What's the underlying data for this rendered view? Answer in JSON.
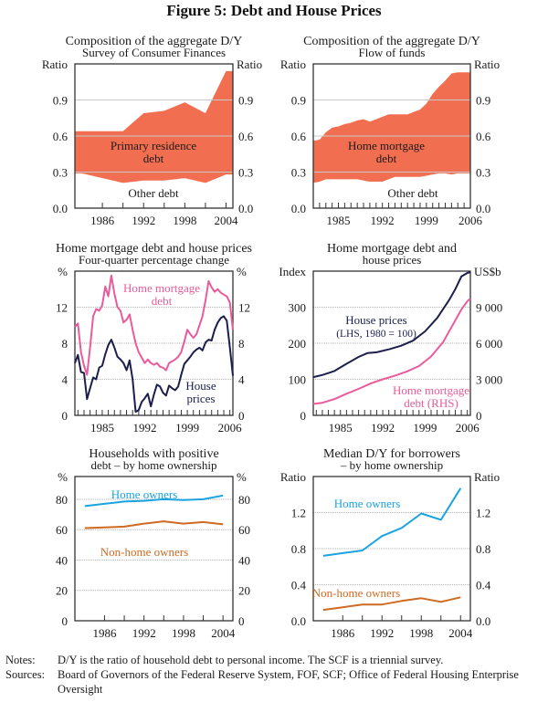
{
  "figure": {
    "title": "Figure 5: Debt and House Prices",
    "notes_label": "Notes:",
    "notes_text": "D/Y is the ratio of household debt to personal income. The SCF is a triennial survey.",
    "sources_label": "Sources:",
    "sources_text": "Board of Governors of the Federal Reserve System, FOF, SCF; Office of Federal Housing Enterprise Oversight"
  },
  "colors": {
    "area": "#f26e50",
    "navy": "#1c1f4d",
    "pink": "#ea5b9a",
    "blue": "#1aa3e0",
    "orange": "#cf6a22",
    "grid": "#b4b4b4"
  },
  "chart_data": [
    {
      "id": "scf",
      "type": "area",
      "title": "Composition of the aggregate D/Y",
      "subtitle": "Survey of Consumer Finances",
      "ylabel_left": "Ratio",
      "ylabel_right": "Ratio",
      "ylim": [
        0,
        1.2
      ],
      "yticks": [
        0.0,
        0.3,
        0.6,
        0.9
      ],
      "ytick_labels": [
        "0.0",
        "0.3",
        "0.6",
        "0.9"
      ],
      "xlim": [
        1982,
        2005
      ],
      "xticks": [
        1986,
        1992,
        1998,
        2004
      ],
      "xtick_labels": [
        "1986",
        "1992",
        "1998",
        "2004"
      ],
      "minor_xticks": [
        1986,
        1989,
        1992,
        1995,
        1998,
        2001,
        2004
      ],
      "x": [
        1983,
        1986,
        1989,
        1992,
        1995,
        1998,
        2001,
        2004
      ],
      "series": [
        {
          "name": "Other debt",
          "values": [
            0.29,
            0.25,
            0.21,
            0.23,
            0.23,
            0.25,
            0.21,
            0.28
          ]
        },
        {
          "name": "Primary residence debt (total)",
          "values": [
            0.64,
            0.64,
            0.64,
            0.79,
            0.81,
            0.88,
            0.79,
            1.14
          ]
        }
      ],
      "annotations": [
        {
          "text": "Primary residence",
          "line2": "debt"
        },
        {
          "text": "Other debt"
        }
      ]
    },
    {
      "id": "fof",
      "type": "area",
      "title": "Composition of the aggregate D/Y",
      "subtitle": "Flow of funds",
      "ylabel_left": "Ratio",
      "ylabel_right": "Ratio",
      "ylim": [
        0,
        1.2
      ],
      "yticks": [
        0.0,
        0.3,
        0.6,
        0.9
      ],
      "ytick_labels": [
        "0.0",
        "0.3",
        "0.6",
        "0.9"
      ],
      "xlim": [
        1981,
        2006
      ],
      "xticks": [
        1985,
        1992,
        1999,
        2006
      ],
      "xtick_labels": [
        "1985",
        "1992",
        "1999",
        "2006"
      ],
      "x": [
        1981,
        1982,
        1983,
        1984,
        1985,
        1986,
        1987,
        1988,
        1989,
        1990,
        1991,
        1992,
        1993,
        1994,
        1995,
        1996,
        1997,
        1998,
        1999,
        2000,
        2001,
        2002,
        2003,
        2004,
        2005,
        2006
      ],
      "series": [
        {
          "name": "Other debt",
          "values": [
            0.21,
            0.22,
            0.24,
            0.24,
            0.24,
            0.24,
            0.24,
            0.24,
            0.23,
            0.22,
            0.22,
            0.22,
            0.24,
            0.26,
            0.26,
            0.26,
            0.26,
            0.26,
            0.27,
            0.28,
            0.29,
            0.29,
            0.28,
            0.29,
            0.29,
            0.29
          ]
        },
        {
          "name": "Home mortgage debt (total)",
          "values": [
            0.56,
            0.57,
            0.63,
            0.67,
            0.68,
            0.7,
            0.71,
            0.73,
            0.74,
            0.72,
            0.74,
            0.76,
            0.78,
            0.78,
            0.78,
            0.78,
            0.8,
            0.82,
            0.87,
            0.95,
            1.01,
            1.06,
            1.12,
            1.13,
            1.13,
            1.13
          ]
        }
      ],
      "annotations": [
        {
          "text": "Home mortgage",
          "line2": "debt"
        },
        {
          "text": "Other debt"
        }
      ]
    },
    {
      "id": "growth",
      "type": "line",
      "title": "Home mortgage debt and house prices",
      "subtitle": "Four-quarter percentage change",
      "ylabel_left": "%",
      "ylabel_right": "%",
      "ylim": [
        0,
        16
      ],
      "yticks": [
        0,
        4,
        8,
        12
      ],
      "ytick_labels": [
        "0",
        "4",
        "8",
        "12"
      ],
      "xlim": [
        1980.5,
        2006.5
      ],
      "xticks": [
        1985,
        1992,
        1999,
        2006
      ],
      "xtick_labels": [
        "1985",
        "1992",
        "1999",
        "2006"
      ],
      "series": [
        {
          "name": "Home mortgage debt",
          "color_key": "pink",
          "x": [
            1980.5,
            1981,
            1981.5,
            1982,
            1982.5,
            1983,
            1983.5,
            1984,
            1984.5,
            1985,
            1985.5,
            1986,
            1986.5,
            1987,
            1987.5,
            1988,
            1988.5,
            1989,
            1989.5,
            1990,
            1990.5,
            1991,
            1991.5,
            1992,
            1992.5,
            1993,
            1993.5,
            1994,
            1994.5,
            1995,
            1995.5,
            1996,
            1996.5,
            1997,
            1997.5,
            1998,
            1998.5,
            1999,
            1999.5,
            2000,
            2000.5,
            2001,
            2001.5,
            2002,
            2002.5,
            2003,
            2003.5,
            2004,
            2004.5,
            2005,
            2005.5,
            2006,
            2006.5
          ],
          "values": [
            9.8,
            10.2,
            7.0,
            5.5,
            4.5,
            7.5,
            11.0,
            11.8,
            11.6,
            12.2,
            14.3,
            13.2,
            15.5,
            13.5,
            12.0,
            11.6,
            10.3,
            10.6,
            11.2,
            9.5,
            8.0,
            7.0,
            6.4,
            5.8,
            6.2,
            5.8,
            5.6,
            5.8,
            5.4,
            5.3,
            5.0,
            5.8,
            6.0,
            6.2,
            6.5,
            7.0,
            8.2,
            9.5,
            9.0,
            8.6,
            9.0,
            10.0,
            11.0,
            12.8,
            14.9,
            14.2,
            13.7,
            14.0,
            13.6,
            13.4,
            13.2,
            12.5,
            9.5
          ]
        },
        {
          "name": "House prices",
          "color_key": "navy",
          "x": [
            1980.5,
            1981,
            1981.5,
            1982,
            1982.5,
            1983,
            1983.5,
            1984,
            1984.5,
            1985,
            1985.5,
            1986,
            1986.5,
            1987,
            1987.5,
            1988,
            1988.5,
            1989,
            1989.5,
            1990,
            1990.5,
            1991,
            1991.5,
            1992,
            1992.5,
            1993,
            1993.5,
            1994,
            1994.5,
            1995,
            1995.5,
            1996,
            1996.5,
            1997,
            1997.5,
            1998,
            1998.5,
            1999,
            1999.5,
            2000,
            2000.5,
            2001,
            2001.5,
            2002,
            2002.5,
            2003,
            2003.5,
            2004,
            2004.5,
            2005,
            2005.5,
            2006,
            2006.5
          ],
          "values": [
            5.8,
            6.7,
            4.8,
            4.7,
            1.8,
            3.0,
            4.2,
            4.0,
            5.3,
            5.5,
            6.8,
            7.8,
            8.4,
            7.5,
            6.5,
            6.2,
            5.8,
            5.0,
            6.1,
            4.0,
            0.4,
            0.6,
            1.5,
            1.9,
            2.4,
            1.0,
            2.3,
            3.4,
            3.2,
            2.5,
            2.2,
            3.3,
            3.0,
            2.8,
            3.2,
            4.5,
            5.7,
            6.1,
            6.5,
            7.0,
            7.3,
            7.5,
            7.2,
            8.1,
            8.4,
            8.3,
            9.5,
            10.3,
            10.8,
            11.0,
            10.5,
            7.5,
            4.4
          ]
        }
      ],
      "annotations": [
        {
          "text": "Home mortgage",
          "line2": "debt"
        },
        {
          "text": "House",
          "line2": "prices"
        }
      ]
    },
    {
      "id": "levels",
      "type": "line",
      "title": "Home mortgage debt and",
      "subtitle": "house prices",
      "ylabel_left": "Index",
      "ylabel_right": "US$b",
      "ylim": [
        0,
        400
      ],
      "yticks": [
        0,
        100,
        200,
        300
      ],
      "ytick_labels": [
        "0",
        "100",
        "200",
        "300"
      ],
      "ylim_right": [
        0,
        12000
      ],
      "yticks_right": [
        0,
        3000,
        6000,
        9000
      ],
      "ytick_labels_right": [
        "0",
        "3 000",
        "6 000",
        "9 000"
      ],
      "xlim": [
        1980.5,
        2006.5
      ],
      "xticks": [
        1985,
        1992,
        1999,
        2006
      ],
      "xtick_labels": [
        "1985",
        "1992",
        "1999",
        "2006"
      ],
      "series": [
        {
          "name": "House prices (LHS, 1980 = 100)",
          "axis": "left",
          "color_key": "navy",
          "x": [
            1980.5,
            1982,
            1984,
            1986,
            1988,
            1989.5,
            1991,
            1993,
            1995,
            1997,
            1999,
            2001,
            2003,
            2004,
            2005,
            2006,
            2006.5
          ],
          "values": [
            106,
            112,
            123,
            143,
            162,
            173,
            175,
            183,
            193,
            207,
            233,
            270,
            320,
            350,
            385,
            395,
            397
          ]
        },
        {
          "name": "Home mortgage debt (RHS)",
          "axis": "right",
          "color_key": "pink",
          "x": [
            1980.5,
            1982,
            1984,
            1986,
            1988,
            1990,
            1992,
            1994,
            1996,
            1998,
            2000,
            2002,
            2003,
            2004,
            2005,
            2006,
            2006.5
          ],
          "values": [
            950,
            1050,
            1350,
            1800,
            2200,
            2650,
            3000,
            3300,
            3650,
            4100,
            4900,
            6100,
            7000,
            7900,
            8800,
            9500,
            9700
          ]
        }
      ],
      "annotations": [
        {
          "text": "House prices",
          "line2": "(LHS, 1980 = 100)"
        },
        {
          "text": "Home mortgage",
          "line2": "debt (RHS)"
        }
      ]
    },
    {
      "id": "positive_debt",
      "type": "line",
      "title": "Households with positive",
      "subtitle": "debt – by home ownership",
      "ylabel_left": "%",
      "ylabel_right": "%",
      "ylim": [
        0,
        95
      ],
      "yticks": [
        0,
        20,
        40,
        60,
        80
      ],
      "ytick_labels": [
        "0",
        "20",
        "40",
        "60",
        "80"
      ],
      "xlim": [
        1981.5,
        2005.5
      ],
      "xticks": [
        1986,
        1992,
        1998,
        2004
      ],
      "xtick_labels": [
        "1986",
        "1992",
        "1998",
        "2004"
      ],
      "minor_xticks": [
        1986,
        1989,
        1992,
        1995,
        1998,
        2001,
        2004
      ],
      "series": [
        {
          "name": "Home owners",
          "color_key": "blue",
          "x": [
            1983,
            1986,
            1989,
            1992,
            1995,
            1998,
            2001,
            2004
          ],
          "values": [
            75.5,
            77,
            78.5,
            79,
            80,
            79.5,
            80,
            82.5
          ]
        },
        {
          "name": "Non-home owners",
          "color_key": "orange",
          "x": [
            1983,
            1986,
            1989,
            1992,
            1995,
            1998,
            2001,
            2004
          ],
          "values": [
            61,
            61.5,
            62,
            64,
            65.5,
            64,
            65,
            63.5
          ]
        }
      ],
      "annotations": [
        {
          "text": "Home owners"
        },
        {
          "text": "Non-home owners"
        }
      ]
    },
    {
      "id": "median_dy",
      "type": "line",
      "title": "Median D/Y for borrowers",
      "subtitle": "– by home ownership",
      "ylabel_left": "Ratio",
      "ylabel_right": "Ratio",
      "ylim": [
        0,
        1.6
      ],
      "yticks": [
        0.0,
        0.4,
        0.8,
        1.2
      ],
      "ytick_labels": [
        "0.0",
        "0.4",
        "0.8",
        "1.2"
      ],
      "xlim": [
        1981.5,
        2005.5
      ],
      "xticks": [
        1986,
        1992,
        1998,
        2004
      ],
      "xtick_labels": [
        "1986",
        "1992",
        "1998",
        "2004"
      ],
      "minor_xticks": [
        1986,
        1989,
        1992,
        1995,
        1998,
        2001,
        2004
      ],
      "series": [
        {
          "name": "Home owners",
          "color_key": "blue",
          "x": [
            1983,
            1986,
            1989,
            1992,
            1995,
            1998,
            2001,
            2004
          ],
          "values": [
            0.72,
            0.75,
            0.78,
            0.94,
            1.03,
            1.19,
            1.12,
            1.47
          ]
        },
        {
          "name": "Non-home owners",
          "color_key": "orange",
          "x": [
            1983,
            1986,
            1989,
            1992,
            1995,
            1998,
            2001,
            2004
          ],
          "values": [
            0.12,
            0.15,
            0.18,
            0.18,
            0.22,
            0.25,
            0.21,
            0.26
          ]
        }
      ],
      "annotations": [
        {
          "text": "Home owners"
        },
        {
          "text": "Non-home owners"
        }
      ]
    }
  ]
}
